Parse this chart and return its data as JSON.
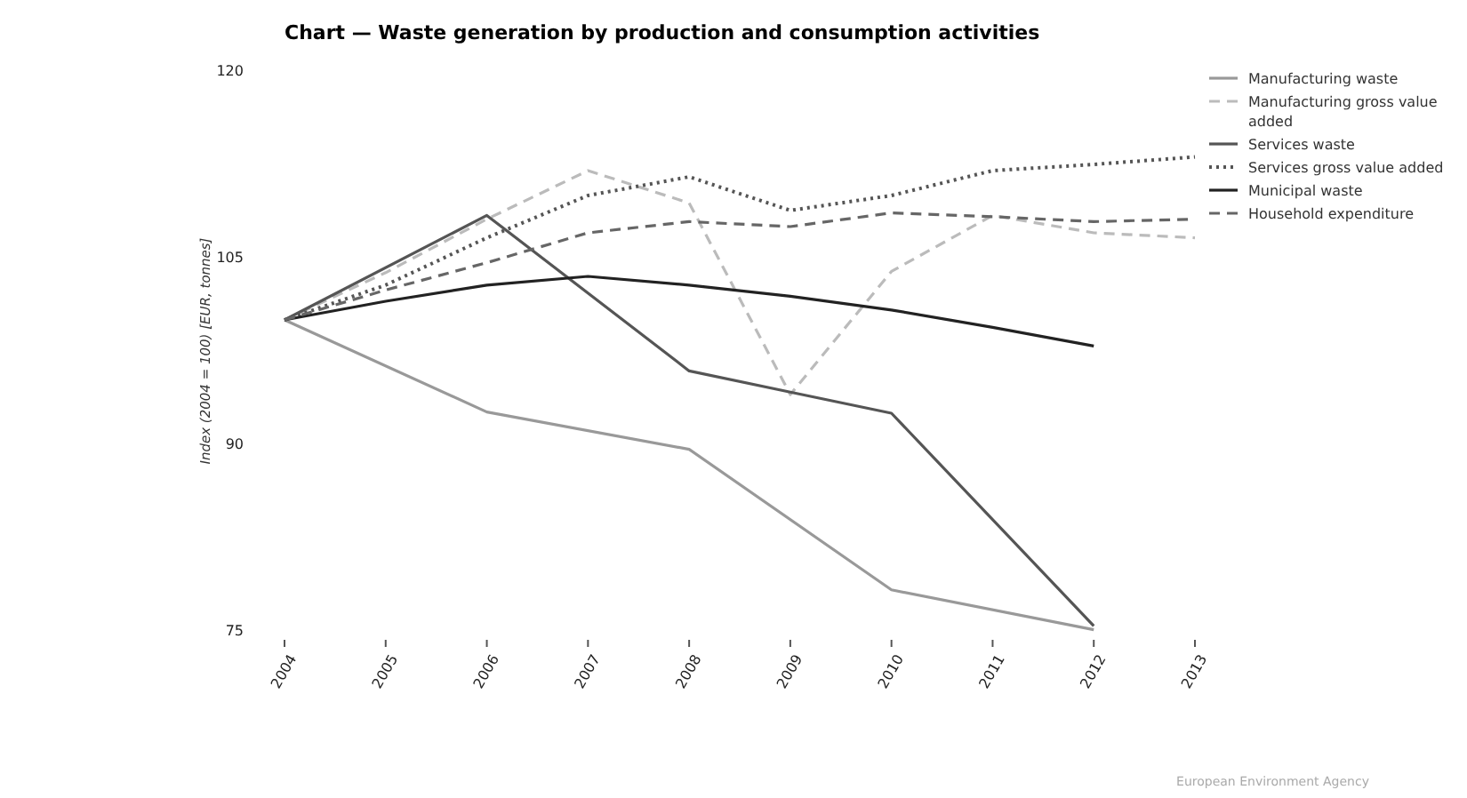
{
  "chart_data": {
    "type": "line",
    "title": "Chart — Waste generation by production and consumption activities",
    "ylabel": "Index (2004 = 100) [EUR, tonnes]",
    "xlim": [
      2004,
      2013
    ],
    "xticks": [
      2004,
      2005,
      2006,
      2007,
      2008,
      2009,
      2010,
      2011,
      2012,
      2013
    ],
    "ylim": [
      75,
      120
    ],
    "yticks": [
      75,
      90,
      105,
      120
    ],
    "grid": false,
    "legend": "top right",
    "marker": "none",
    "annotations": [
      "European Environment Agency"
    ],
    "series": [
      {
        "name": "Manufacturing waste",
        "color": "#999999",
        "line_style": "solid",
        "x": [
          2004,
          2006,
          2008,
          2010,
          2012
        ],
        "values": [
          100,
          92.6,
          89.6,
          78.3,
          75.1
        ]
      },
      {
        "name": "Manufacturing gross value added",
        "color": "#bbbbbb",
        "line_style": "dashed",
        "x": [
          2004,
          2005,
          2006,
          2007,
          2008,
          2009,
          2010,
          2011,
          2012,
          2013
        ],
        "values": [
          100,
          103.8,
          108.1,
          112.0,
          109.4,
          94.0,
          103.9,
          108.4,
          107.0,
          106.6
        ]
      },
      {
        "name": "Services waste",
        "color": "#555555",
        "line_style": "solid",
        "x": [
          2004,
          2006,
          2008,
          2009,
          2010,
          2012
        ],
        "values": [
          100,
          108.4,
          95.9,
          94.2,
          92.5,
          75.4
        ]
      },
      {
        "name": "Services gross value added",
        "color": "#555555",
        "line_style": "dotted",
        "x": [
          2004,
          2005,
          2006,
          2007,
          2008,
          2009,
          2010,
          2011,
          2012,
          2013
        ],
        "values": [
          100,
          102.8,
          106.6,
          110.0,
          111.5,
          108.8,
          110.0,
          112.0,
          112.5,
          113.1
        ]
      },
      {
        "name": "Municipal waste",
        "color": "#222222",
        "line_style": "solid",
        "x": [
          2004,
          2005,
          2006,
          2007,
          2008,
          2009,
          2010,
          2011,
          2012
        ],
        "values": [
          100,
          101.5,
          102.8,
          103.5,
          102.8,
          101.9,
          100.8,
          99.4,
          97.9
        ]
      },
      {
        "name": "Household expenditure",
        "color": "#666666",
        "line_style": "dashed",
        "x": [
          2004,
          2005,
          2006,
          2007,
          2008,
          2009,
          2010,
          2011,
          2012,
          2013
        ],
        "values": [
          100,
          102.4,
          104.6,
          107.0,
          107.9,
          107.5,
          108.6,
          108.3,
          107.9,
          108.1
        ]
      }
    ]
  }
}
